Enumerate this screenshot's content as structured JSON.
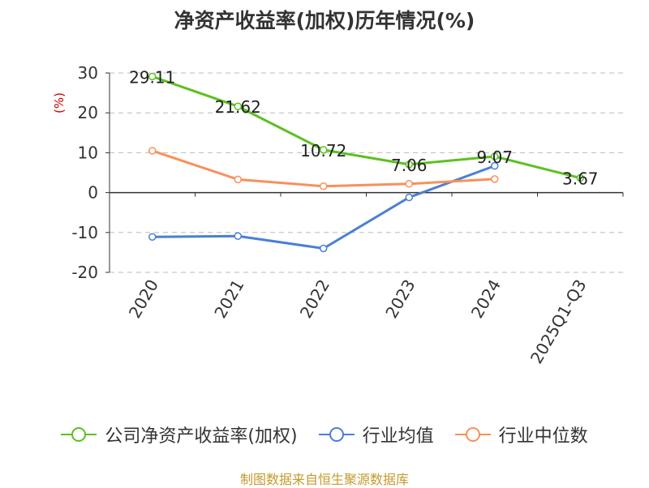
{
  "chart_data": {
    "type": "line",
    "title": "净资产收益率(加权)历年情况(%)",
    "ylabel": "(%)",
    "categories": [
      "2020",
      "2021",
      "2022",
      "2023",
      "2024",
      "2025Q1-Q3"
    ],
    "ylim": [
      -20,
      30
    ],
    "yticks": [
      30,
      20,
      10,
      0,
      -10,
      -20
    ],
    "ytick_labels": [
      "30",
      "20",
      "10",
      "0",
      "-10",
      "-20"
    ],
    "grid": true,
    "legend_position": "bottom",
    "series": [
      {
        "name": "公司净资产收益率(加权)",
        "color": "#5cc11f",
        "values": [
          29.11,
          21.62,
          10.72,
          7.06,
          9.07,
          3.67
        ],
        "labels": [
          "29.11",
          "21.62",
          "10.72",
          "7.06",
          "9.07",
          "3.67"
        ]
      },
      {
        "name": "行业均值",
        "color": "#4a7fd6",
        "values": [
          -11.1,
          -10.9,
          -14.0,
          -1.2,
          6.7,
          null
        ]
      },
      {
        "name": "行业中位数",
        "color": "#f7915a",
        "values": [
          10.5,
          3.3,
          1.6,
          2.2,
          3.4,
          null
        ]
      }
    ],
    "source": "制图数据来自恒生聚源数据库"
  }
}
